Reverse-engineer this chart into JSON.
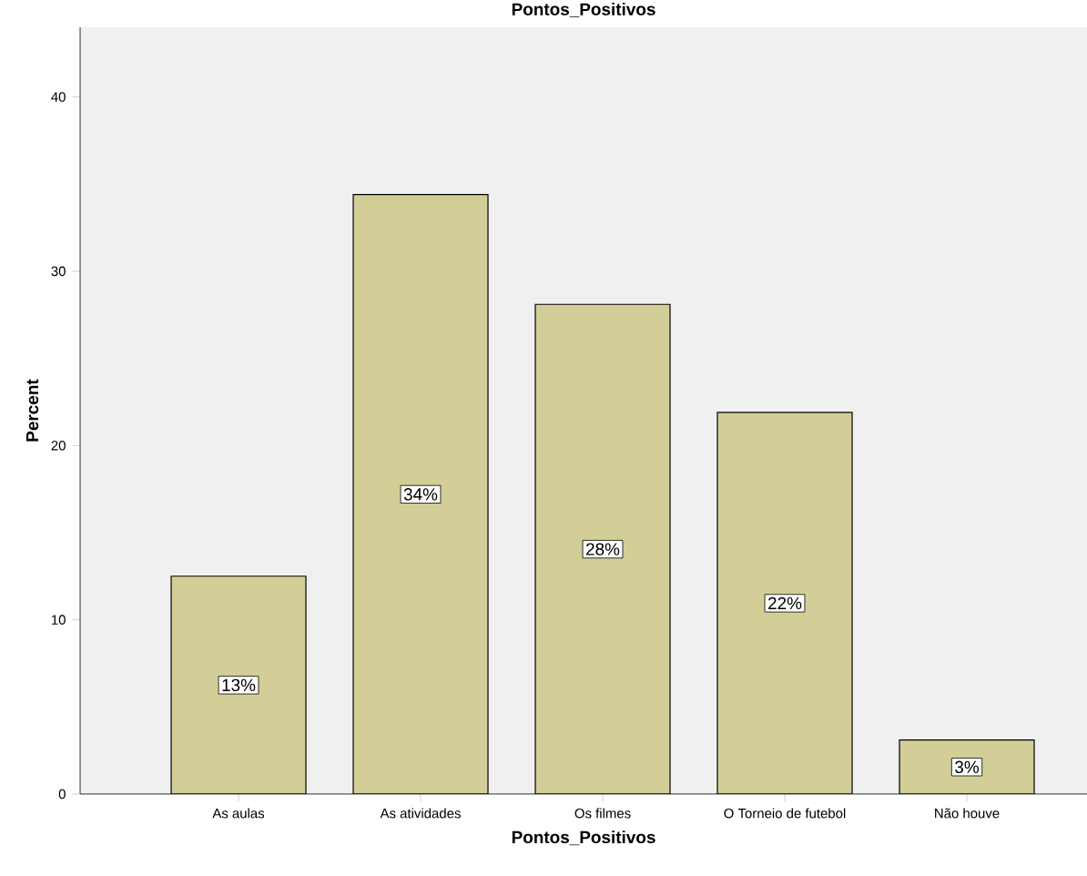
{
  "chart_data": {
    "type": "bar",
    "title": "Pontos_Positivos",
    "xlabel": "Pontos_Positivos",
    "ylabel": "Percent",
    "categories": [
      "As aulas",
      "As atividades",
      "Os filmes",
      "O Torneio de futebol",
      "Não houve"
    ],
    "values": [
      12.5,
      34.4,
      28.1,
      21.9,
      3.1
    ],
    "value_labels": [
      "13%",
      "34%",
      "28%",
      "22%",
      "3%"
    ],
    "color": "#d3ce97",
    "ylim": [
      0,
      44
    ],
    "yticks": [
      0,
      10,
      20,
      30,
      40
    ],
    "grid": false
  }
}
